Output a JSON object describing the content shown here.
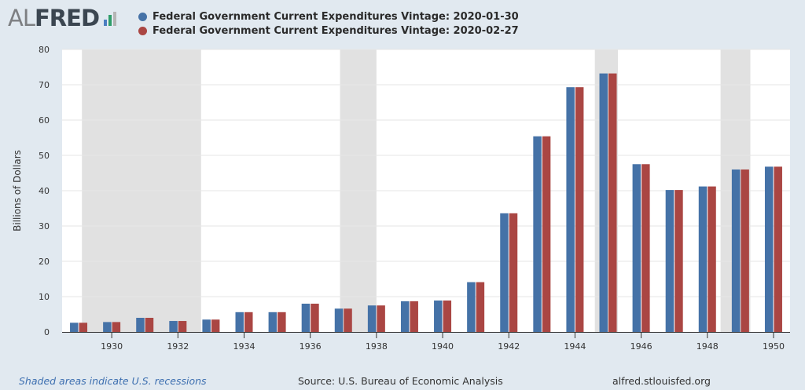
{
  "logo": {
    "al": "AL",
    "fred": "FRED",
    "icon": "bar-chart-icon",
    "icon_colors": [
      "#4b7ec1",
      "#2f9d6a",
      "#b5b5b5"
    ]
  },
  "legend": [
    {
      "label": "Federal Government Current Expenditures Vintage: 2020-01-30",
      "color": "#4572a7"
    },
    {
      "label": "Federal Government Current Expenditures Vintage: 2020-02-27",
      "color": "#aa4643"
    }
  ],
  "footer": {
    "recessions_note": "Shaded areas indicate U.S. recessions",
    "source": "Source: U.S. Bureau of Economic Analysis",
    "site": "alfred.stlouisfed.org"
  },
  "chart_data": {
    "type": "bar",
    "ylabel": "Billions of Dollars",
    "ylim": [
      0,
      80
    ],
    "yticks": [
      0,
      10,
      20,
      30,
      40,
      50,
      60,
      70,
      80
    ],
    "xticks": [
      "1930",
      "1932",
      "1934",
      "1936",
      "1938",
      "1940",
      "1942",
      "1944",
      "1946",
      "1948",
      "1950"
    ],
    "categories": [
      "1929",
      "1930",
      "1931",
      "1932",
      "1933",
      "1934",
      "1935",
      "1936",
      "1937",
      "1938",
      "1939",
      "1940",
      "1941",
      "1942",
      "1943",
      "1944",
      "1945",
      "1946",
      "1947",
      "1948",
      "1949",
      "1950"
    ],
    "series": [
      {
        "name": "Federal Government Current Expenditures Vintage: 2020-01-30",
        "color": "#4572a7",
        "values": [
          2.6,
          2.8,
          4.0,
          3.1,
          3.5,
          5.6,
          5.6,
          8.0,
          6.6,
          7.5,
          8.7,
          8.9,
          14.1,
          33.6,
          55.4,
          69.3,
          73.2,
          47.5,
          40.2,
          41.2,
          46.0,
          46.8
        ]
      },
      {
        "name": "Federal Government Current Expenditures Vintage: 2020-02-27",
        "color": "#aa4643",
        "values": [
          2.6,
          2.8,
          4.0,
          3.1,
          3.5,
          5.6,
          5.6,
          8.0,
          6.6,
          7.5,
          8.7,
          8.9,
          14.1,
          33.6,
          55.4,
          69.3,
          73.2,
          47.5,
          40.2,
          41.2,
          46.0,
          46.8
        ]
      }
    ],
    "recessions": [
      [
        1929.6,
        1933.2
      ],
      [
        1937.4,
        1938.5
      ],
      [
        1945.1,
        1945.8
      ],
      [
        1948.9,
        1949.8
      ]
    ],
    "grid": true,
    "legend_position": "top-left"
  }
}
